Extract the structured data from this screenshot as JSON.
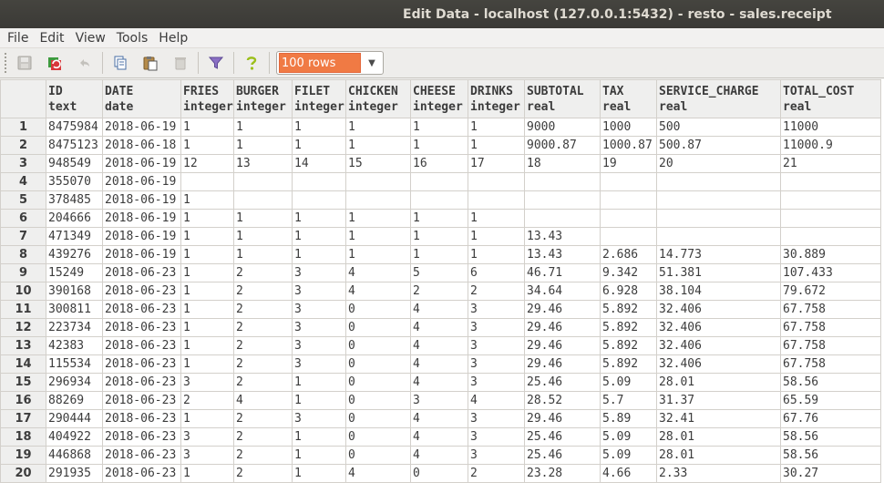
{
  "window": {
    "title": "Edit Data - localhost (127.0.0.1:5432) - resto - sales.receipt"
  },
  "menu": [
    "File",
    "Edit",
    "View",
    "Tools",
    "Help"
  ],
  "toolbar": {
    "icons": [
      "save-icon",
      "refresh-icon",
      "undo-icon",
      "copy-icon",
      "paste-icon",
      "delete-icon",
      "filter-icon",
      "help-icon"
    ],
    "rows_limit": "100 rows"
  },
  "columns": [
    {
      "name": "ID",
      "type": "text"
    },
    {
      "name": "DATE",
      "type": "date"
    },
    {
      "name": "FRIES",
      "type": "integer"
    },
    {
      "name": "BURGER",
      "type": "integer"
    },
    {
      "name": "FILET",
      "type": "integer"
    },
    {
      "name": "CHICKEN",
      "type": "integer"
    },
    {
      "name": "CHEESE",
      "type": "integer"
    },
    {
      "name": "DRINKS",
      "type": "integer"
    },
    {
      "name": "SUBTOTAL",
      "type": "real"
    },
    {
      "name": "TAX",
      "type": "real"
    },
    {
      "name": "SERVICE_CHARGE",
      "type": "real"
    },
    {
      "name": "TOTAL_COST",
      "type": "real"
    }
  ],
  "rows": [
    [
      "1",
      "8475984",
      "2018-06-19",
      "1",
      "1",
      "1",
      "1",
      "1",
      "1",
      "9000",
      "1000",
      "500",
      "11000"
    ],
    [
      "2",
      "8475123",
      "2018-06-18",
      "1",
      "1",
      "1",
      "1",
      "1",
      "1",
      "9000.87",
      "1000.87",
      "500.87",
      "11000.9"
    ],
    [
      "3",
      "948549",
      "2018-06-19",
      "12",
      "13",
      "14",
      "15",
      "16",
      "17",
      "18",
      "19",
      "20",
      "21"
    ],
    [
      "4",
      "355070",
      "2018-06-19",
      "",
      "",
      "",
      "",
      "",
      "",
      "",
      "",
      "",
      ""
    ],
    [
      "5",
      "378485",
      "2018-06-19",
      "1",
      "",
      "",
      "",
      "",
      "",
      "",
      "",
      "",
      ""
    ],
    [
      "6",
      "204666",
      "2018-06-19",
      "1",
      "1",
      "1",
      "1",
      "1",
      "1",
      "",
      "",
      "",
      ""
    ],
    [
      "7",
      "471349",
      "2018-06-19",
      "1",
      "1",
      "1",
      "1",
      "1",
      "1",
      "13.43",
      "",
      "",
      ""
    ],
    [
      "8",
      "439276",
      "2018-06-19",
      "1",
      "1",
      "1",
      "1",
      "1",
      "1",
      "13.43",
      "2.686",
      "14.773",
      "30.889"
    ],
    [
      "9",
      "15249",
      "2018-06-23",
      "1",
      "2",
      "3",
      "4",
      "5",
      "6",
      "46.71",
      "9.342",
      "51.381",
      "107.433"
    ],
    [
      "10",
      "390168",
      "2018-06-23",
      "1",
      "2",
      "3",
      "4",
      "2",
      "2",
      "34.64",
      "6.928",
      "38.104",
      "79.672"
    ],
    [
      "11",
      "300811",
      "2018-06-23",
      "1",
      "2",
      "3",
      "0",
      "4",
      "3",
      "29.46",
      "5.892",
      "32.406",
      "67.758"
    ],
    [
      "12",
      "223734",
      "2018-06-23",
      "1",
      "2",
      "3",
      "0",
      "4",
      "3",
      "29.46",
      "5.892",
      "32.406",
      "67.758"
    ],
    [
      "13",
      "42383",
      "2018-06-23",
      "1",
      "2",
      "3",
      "0",
      "4",
      "3",
      "29.46",
      "5.892",
      "32.406",
      "67.758"
    ],
    [
      "14",
      "115534",
      "2018-06-23",
      "1",
      "2",
      "3",
      "0",
      "4",
      "3",
      "29.46",
      "5.892",
      "32.406",
      "67.758"
    ],
    [
      "15",
      "296934",
      "2018-06-23",
      "3",
      "2",
      "1",
      "0",
      "4",
      "3",
      "25.46",
      "5.09",
      "28.01",
      "58.56"
    ],
    [
      "16",
      "88269",
      "2018-06-23",
      "2",
      "4",
      "1",
      "0",
      "3",
      "4",
      "28.52",
      "5.7",
      "31.37",
      "65.59"
    ],
    [
      "17",
      "290444",
      "2018-06-23",
      "1",
      "2",
      "3",
      "0",
      "4",
      "3",
      "29.46",
      "5.89",
      "32.41",
      "67.76"
    ],
    [
      "18",
      "404922",
      "2018-06-23",
      "3",
      "2",
      "1",
      "0",
      "4",
      "3",
      "25.46",
      "5.09",
      "28.01",
      "58.56"
    ],
    [
      "19",
      "446868",
      "2018-06-23",
      "3",
      "2",
      "1",
      "0",
      "4",
      "3",
      "25.46",
      "5.09",
      "28.01",
      "58.56"
    ],
    [
      "20",
      "291935",
      "2018-06-23",
      "1",
      "2",
      "1",
      "4",
      "0",
      "2",
      "23.28",
      "4.66",
      "2.33",
      "30.27"
    ]
  ]
}
